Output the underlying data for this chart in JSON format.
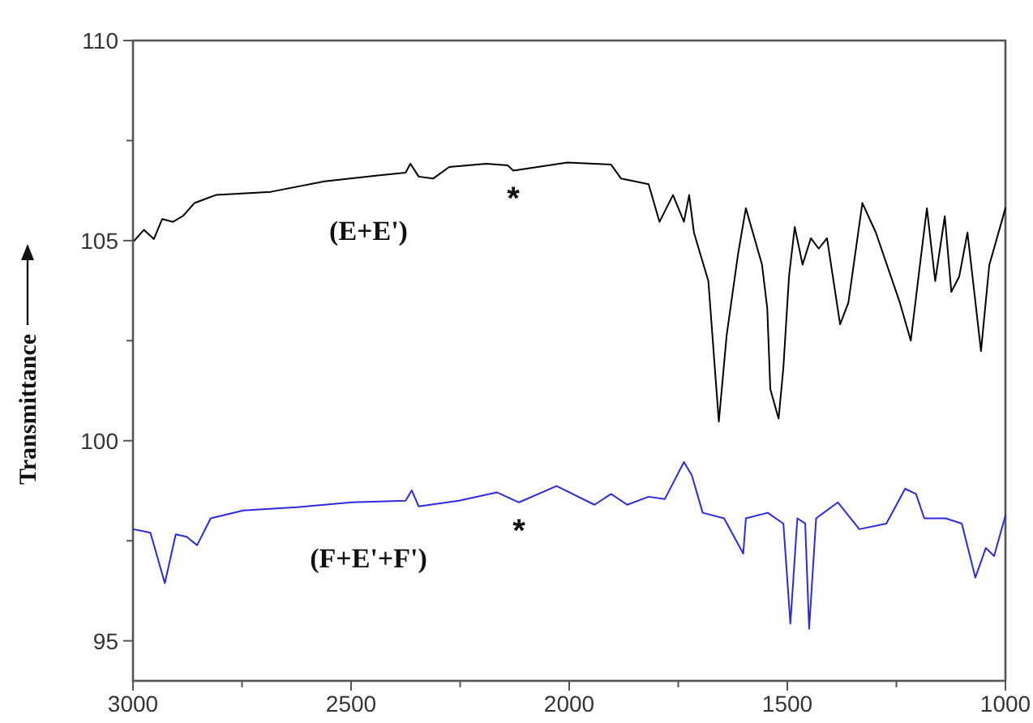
{
  "chart_data": {
    "type": "line",
    "ylabel": "Transmittance",
    "xlim": [
      3000,
      1000
    ],
    "xticks": [
      3000,
      {
        "value": 2750,
        "label": null
      },
      2500,
      {
        "value": 2250,
        "label": null
      },
      2000,
      {
        "value": 1750,
        "label": null
      },
      1500,
      {
        "value": 1250,
        "label": null
      },
      1000
    ],
    "ylim": [
      94,
      110
    ],
    "yticks": [
      95,
      {
        "value": 97.5,
        "label": null
      },
      100,
      {
        "value": 102.5,
        "label": null
      },
      105,
      {
        "value": 107.5,
        "label": null
      },
      110
    ],
    "grid": false,
    "marker": "none",
    "line_style": "solid",
    "series": [
      {
        "name": "(E+E')",
        "color": "#000000",
        "x": [
          2997,
          2975,
          2952,
          2933,
          2908,
          2885,
          2859,
          2810,
          2684,
          2561,
          2439,
          2375,
          2364,
          2345,
          2312,
          2275,
          2190,
          2141,
          2128,
          2004,
          1904,
          1881,
          1818,
          1793,
          1762,
          1737,
          1725,
          1714,
          1681,
          1657,
          1639,
          1613,
          1595,
          1558,
          1546,
          1539,
          1520,
          1509,
          1496,
          1483,
          1465,
          1446,
          1428,
          1409,
          1379,
          1360,
          1328,
          1297,
          1242,
          1217,
          1199,
          1180,
          1161,
          1139,
          1124,
          1106,
          1087,
          1056,
          1037,
          1000
        ],
        "values": [
          105.0,
          105.27,
          105.04,
          105.54,
          105.47,
          105.62,
          105.94,
          106.14,
          106.22,
          106.48,
          106.63,
          106.7,
          106.92,
          106.6,
          106.55,
          106.84,
          106.92,
          106.88,
          106.75,
          106.95,
          106.9,
          106.55,
          106.41,
          105.47,
          106.14,
          105.47,
          106.14,
          105.2,
          103.99,
          100.48,
          102.64,
          104.66,
          105.81,
          104.4,
          103.31,
          101.29,
          100.55,
          101.83,
          104.12,
          105.34,
          104.4,
          105.06,
          104.8,
          105.06,
          102.91,
          103.45,
          105.94,
          105.2,
          103.45,
          102.5,
          104.12,
          105.81,
          103.99,
          105.61,
          103.72,
          104.1,
          105.2,
          102.24,
          104.39,
          105.81
        ]
      },
      {
        "name": "(F+E'+F')",
        "color": "#2a2ae0",
        "x": [
          3000,
          2982,
          2960,
          2927,
          2902,
          2877,
          2853,
          2822,
          2747,
          2624,
          2499,
          2375,
          2361,
          2345,
          2253,
          2166,
          2115,
          2029,
          1942,
          1904,
          1867,
          1818,
          1781,
          1737,
          1719,
          1694,
          1645,
          1601,
          1595,
          1545,
          1509,
          1493,
          1477,
          1459,
          1450,
          1434,
          1384,
          1335,
          1273,
          1230,
          1205,
          1186,
          1137,
          1100,
          1069,
          1045,
          1026,
          1000
        ],
        "values": [
          97.79,
          97.75,
          97.7,
          96.44,
          97.66,
          97.6,
          97.39,
          98.06,
          98.26,
          98.34,
          98.46,
          98.5,
          98.76,
          98.36,
          98.5,
          98.71,
          98.46,
          98.87,
          98.4,
          98.67,
          98.4,
          98.6,
          98.54,
          99.47,
          99.14,
          98.2,
          98.06,
          97.18,
          98.06,
          98.2,
          97.93,
          95.43,
          98.06,
          97.93,
          95.3,
          98.06,
          98.46,
          97.79,
          97.93,
          98.8,
          98.67,
          98.06,
          98.06,
          97.93,
          96.58,
          97.32,
          97.12,
          98.13
        ]
      }
    ],
    "annotations": [
      {
        "text": "*",
        "x": 2128,
        "y": 106.75
      },
      {
        "text": "*",
        "x": 2115,
        "y": 98.46
      }
    ]
  }
}
